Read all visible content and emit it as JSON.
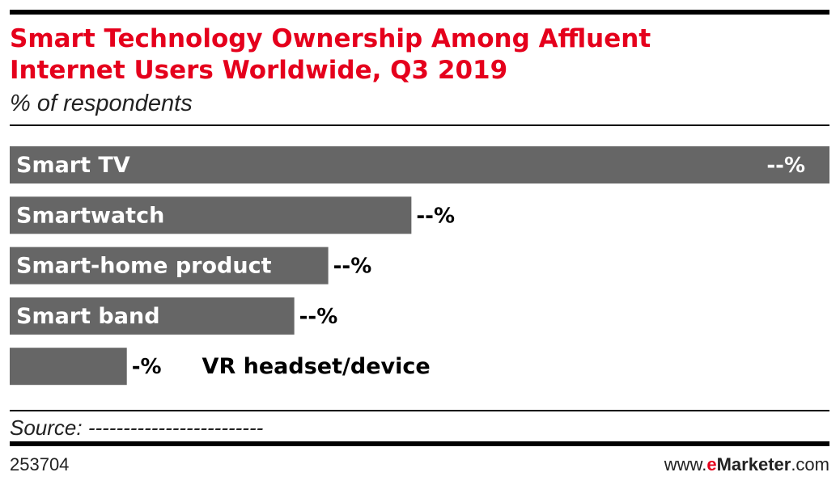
{
  "chart_data": {
    "type": "hbar",
    "title": [
      "Smart Technology Ownership Among Affluent",
      "Internet Users Worldwide, Q3 2019"
    ],
    "subtitle": "% of respondents",
    "categories": [
      "Smart TV",
      "Smartwatch",
      "Smart-home product",
      "Smart band",
      "VR headset/device"
    ],
    "values": [
      70,
      34.3,
      27.2,
      24.3,
      10
    ],
    "value_labels": [
      "--%",
      "--%",
      "--%",
      "--%",
      "-%"
    ],
    "color": "#666666",
    "source": "Source: -------------------------",
    "chart_id": "253704",
    "brand": [
      "www.",
      "e",
      "Marketer",
      ".com"
    ]
  }
}
